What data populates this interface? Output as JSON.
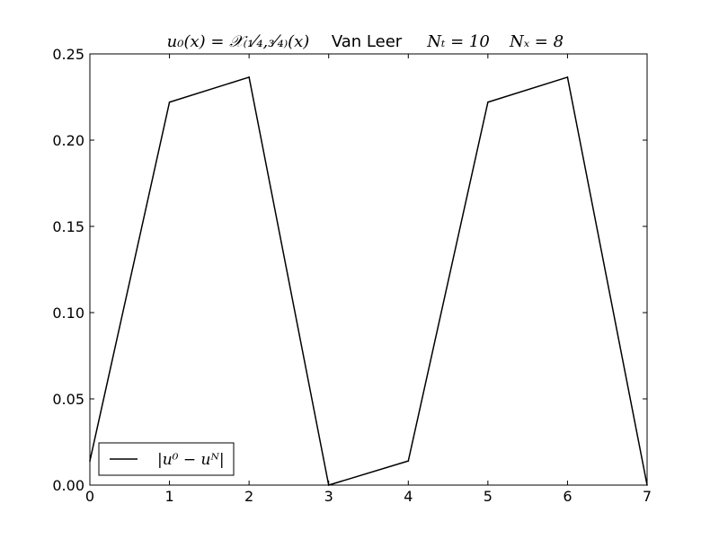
{
  "chart_data": {
    "type": "line",
    "title_parts": {
      "initial_condition": "u₀(x) = 𝒳₍₁⁄₄,₃⁄₄₎(x)",
      "scheme": "Van Leer",
      "time_steps": "Nₜ = 10",
      "space_steps": "Nₓ = 8"
    },
    "xlabel": "",
    "ylabel": "",
    "xlim": [
      0,
      7
    ],
    "ylim": [
      0,
      0.25
    ],
    "x_ticks": [
      0,
      1,
      2,
      3,
      4,
      5,
      6,
      7
    ],
    "x_tick_labels": [
      "0",
      "1",
      "2",
      "3",
      "4",
      "5",
      "6",
      "7"
    ],
    "y_ticks": [
      0,
      0.05,
      0.1,
      0.15,
      0.2,
      0.25
    ],
    "y_tick_labels": [
      "0.00",
      "0.05",
      "0.10",
      "0.15",
      "0.20",
      "0.25"
    ],
    "grid": false,
    "legend_position": "lower-left",
    "series": [
      {
        "name": "|u⁰ − uᴺ|",
        "color": "#000000",
        "x": [
          0,
          1,
          2,
          3,
          4,
          5,
          6,
          7
        ],
        "values": [
          0.014,
          0.222,
          0.2365,
          0.0,
          0.014,
          0.222,
          0.2365,
          0.0
        ]
      }
    ]
  }
}
